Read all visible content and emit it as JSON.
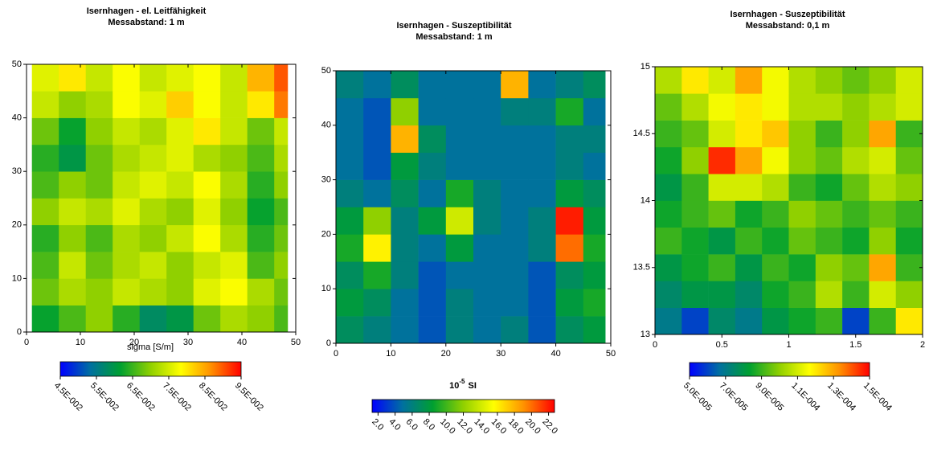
{
  "chart_data": [
    {
      "type": "heatmap",
      "title": [
        "Isernhagen - el. Leitfähigkeit",
        "Messabstand: 1 m"
      ],
      "xlim": [
        0,
        50
      ],
      "ylim": [
        0,
        50
      ],
      "xticks": [
        0,
        10,
        20,
        30,
        40,
        50
      ],
      "yticks": [
        0,
        10,
        20,
        30,
        40,
        50
      ],
      "x_edges": [
        1,
        6,
        11,
        16,
        21,
        26,
        31,
        36,
        41,
        46,
        48.5
      ],
      "y_edges": [
        0,
        5,
        10,
        15,
        20,
        25,
        30,
        35,
        40,
        45,
        50
      ],
      "z": [
        [
          0.062,
          0.066,
          0.07,
          0.064,
          0.058,
          0.06,
          0.068,
          0.072,
          0.07,
          0.066
        ],
        [
          0.068,
          0.072,
          0.07,
          0.074,
          0.072,
          0.07,
          0.076,
          0.078,
          0.072,
          0.068
        ],
        [
          0.066,
          0.074,
          0.068,
          0.072,
          0.074,
          0.07,
          0.074,
          0.076,
          0.066,
          0.07
        ],
        [
          0.064,
          0.07,
          0.066,
          0.072,
          0.07,
          0.074,
          0.078,
          0.072,
          0.064,
          0.068
        ],
        [
          0.07,
          0.074,
          0.072,
          0.076,
          0.072,
          0.07,
          0.076,
          0.07,
          0.062,
          0.066
        ],
        [
          0.066,
          0.07,
          0.068,
          0.074,
          0.076,
          0.074,
          0.078,
          0.072,
          0.064,
          0.07
        ],
        [
          0.064,
          0.06,
          0.068,
          0.072,
          0.074,
          0.076,
          0.072,
          0.07,
          0.066,
          0.072
        ],
        [
          0.068,
          0.062,
          0.07,
          0.074,
          0.072,
          0.076,
          0.08,
          0.074,
          0.068,
          0.074
        ],
        [
          0.074,
          0.07,
          0.072,
          0.078,
          0.076,
          0.082,
          0.078,
          0.074,
          0.08,
          0.088
        ],
        [
          0.076,
          0.08,
          0.074,
          0.078,
          0.074,
          0.076,
          0.078,
          0.074,
          0.084,
          0.09
        ]
      ],
      "clim": [
        0.045,
        0.095
      ],
      "cticks": [
        {
          "value": 0.045,
          "label": "4.5E-002"
        },
        {
          "value": 0.055,
          "label": "5.5E-002"
        },
        {
          "value": 0.065,
          "label": "6.5E-002"
        },
        {
          "value": 0.075,
          "label": "7.5E-002"
        },
        {
          "value": 0.085,
          "label": "8.5E-002"
        },
        {
          "value": 0.095,
          "label": "9.5E-002"
        }
      ],
      "colorbar_label": {
        "text": "sigma [S/m]"
      },
      "colormap": [
        "#0000ff",
        "#0070a0",
        "#00a030",
        "#90d000",
        "#ffff00",
        "#ff9000",
        "#ff0000"
      ]
    },
    {
      "type": "heatmap",
      "title": [
        "Isernhagen - Suszeptibilität",
        "Messabstand: 1 m"
      ],
      "xlim": [
        0,
        50
      ],
      "ylim": [
        0,
        50
      ],
      "xticks": [
        0,
        10,
        20,
        30,
        40,
        50
      ],
      "yticks": [
        0,
        10,
        20,
        30,
        40,
        50
      ],
      "x_edges": [
        0,
        5,
        10,
        15,
        20,
        25,
        30,
        35,
        40,
        45,
        49
      ],
      "y_edges": [
        0,
        5,
        10,
        15,
        20,
        25,
        30,
        35,
        40,
        45,
        50
      ],
      "z": [
        [
          7,
          6,
          5,
          4,
          6,
          5,
          6,
          4,
          7,
          8
        ],
        [
          8,
          7,
          5,
          4,
          6,
          5,
          5,
          4,
          8,
          9
        ],
        [
          7,
          9,
          6,
          4,
          5,
          5,
          5,
          4,
          7,
          8
        ],
        [
          9,
          16,
          6,
          5,
          8,
          5,
          5,
          6,
          20,
          9
        ],
        [
          8,
          12,
          6,
          8,
          14,
          6,
          5,
          6,
          22,
          8
        ],
        [
          6,
          5,
          7,
          5,
          9,
          6,
          5,
          5,
          8,
          7
        ],
        [
          5,
          4,
          8,
          6,
          5,
          5,
          5,
          5,
          6,
          5
        ],
        [
          5,
          4,
          18,
          7,
          5,
          5,
          5,
          5,
          6,
          6
        ],
        [
          5,
          4,
          12,
          5,
          5,
          5,
          6,
          6,
          9,
          5
        ],
        [
          6,
          5,
          7,
          5,
          5,
          5,
          18,
          5,
          6,
          7
        ]
      ],
      "clim": [
        1.3,
        22.7
      ],
      "cticks": [
        {
          "value": 2,
          "label": "2.0"
        },
        {
          "value": 4,
          "label": "4.0"
        },
        {
          "value": 6,
          "label": "6.0"
        },
        {
          "value": 8,
          "label": "8.0"
        },
        {
          "value": 10,
          "label": "10.0"
        },
        {
          "value": 12,
          "label": "12.0"
        },
        {
          "value": 14,
          "label": "14.0"
        },
        {
          "value": 16,
          "label": "16.0"
        },
        {
          "value": 18,
          "label": "18.0"
        },
        {
          "value": 20,
          "label": "20.0"
        },
        {
          "value": 22,
          "label": "22.0"
        }
      ],
      "colorbar_label": {
        "base": "10",
        "exponent": "-5",
        "unit": "SI"
      },
      "colormap": [
        "#0000ff",
        "#0070a0",
        "#00a030",
        "#90d000",
        "#ffff00",
        "#ff9000",
        "#ff0000"
      ]
    },
    {
      "type": "heatmap",
      "title": [
        "Isernhagen - Suszeptibilität",
        "Messabstand: 0,1 m"
      ],
      "xlim": [
        0,
        2
      ],
      "ylim": [
        13,
        15
      ],
      "xticks": [
        0,
        0.5,
        1,
        1.5,
        2
      ],
      "yticks": [
        13,
        13.5,
        14,
        14.5,
        15
      ],
      "x_edges": [
        0,
        0.2,
        0.4,
        0.6,
        0.8,
        1,
        1.2,
        1.4,
        1.6,
        1.8,
        2
      ],
      "y_edges": [
        13,
        13.2,
        13.4,
        13.6,
        13.8,
        14,
        14.2,
        14.4,
        14.6,
        14.8,
        15
      ],
      "z": [
        [
          7e-05,
          6e-05,
          7.5e-05,
          7e-05,
          8e-05,
          8.5e-05,
          9e-05,
          6e-05,
          9e-05,
          0.00012
        ],
        [
          7.5e-05,
          8e-05,
          8e-05,
          7.5e-05,
          8.5e-05,
          9e-05,
          0.000105,
          9e-05,
          0.00011,
          0.0001
        ],
        [
          8e-05,
          8.5e-05,
          9e-05,
          8e-05,
          9e-05,
          8.5e-05,
          0.0001,
          9.5e-05,
          0.00013,
          9e-05
        ],
        [
          9e-05,
          8.5e-05,
          8e-05,
          9e-05,
          8.5e-05,
          9.5e-05,
          9e-05,
          8.5e-05,
          0.0001,
          8.5e-05
        ],
        [
          8.5e-05,
          9e-05,
          9.5e-05,
          8.5e-05,
          9e-05,
          0.0001,
          9.5e-05,
          9e-05,
          9.5e-05,
          9e-05
        ],
        [
          8e-05,
          9e-05,
          0.00011,
          0.00011,
          0.000105,
          9e-05,
          8.5e-05,
          9.5e-05,
          0.000105,
          0.0001
        ],
        [
          8.5e-05,
          0.0001,
          0.000145,
          0.00013,
          0.000115,
          0.0001,
          9.5e-05,
          0.000105,
          0.00011,
          9.5e-05
        ],
        [
          9e-05,
          9.5e-05,
          0.00011,
          0.00012,
          0.000125,
          0.0001,
          9e-05,
          0.0001,
          0.00013,
          9e-05
        ],
        [
          9.5e-05,
          0.000105,
          0.000115,
          0.00012,
          0.000115,
          0.000105,
          0.000105,
          0.0001,
          0.000105,
          0.00011
        ],
        [
          0.000105,
          0.00012,
          0.00011,
          0.00013,
          0.000115,
          0.000105,
          0.0001,
          9.5e-05,
          0.0001,
          0.00011
        ]
      ],
      "clim": [
        5e-05,
        0.00015
      ],
      "cticks": [
        {
          "value": 5e-05,
          "label": "5.0E-005"
        },
        {
          "value": 7e-05,
          "label": "7.0E-005"
        },
        {
          "value": 9e-05,
          "label": "9.0E-005"
        },
        {
          "value": 0.00011,
          "label": "1.1E-004"
        },
        {
          "value": 0.00013,
          "label": "1.3E-004"
        },
        {
          "value": 0.00015,
          "label": "1.5E-004"
        }
      ],
      "colormap": [
        "#0000ff",
        "#0070a0",
        "#00a030",
        "#90d000",
        "#ffff00",
        "#ff9000",
        "#ff0000"
      ]
    }
  ]
}
